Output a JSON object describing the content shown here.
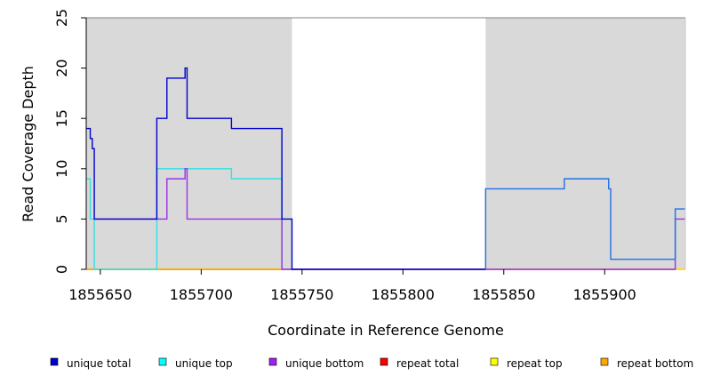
{
  "chart_data": {
    "type": "line",
    "title": "",
    "xlabel": "Coordinate in Reference Genome",
    "ylabel": "Read Coverage Depth",
    "xlim": [
      1855643,
      1855940
    ],
    "ylim": [
      0,
      25
    ],
    "x_ticks": [
      1855650,
      1855700,
      1855750,
      1855800,
      1855850,
      1855900
    ],
    "y_ticks": [
      0,
      5,
      10,
      15,
      20,
      25
    ],
    "shaded_regions": [
      [
        1855643,
        1855745
      ],
      [
        1855841,
        1855940
      ]
    ],
    "legend_position": "bottom",
    "series": [
      {
        "name": "unique total",
        "color": "#0000cc",
        "points": [
          [
            1855643,
            14
          ],
          [
            1855645,
            14
          ],
          [
            1855645,
            13
          ],
          [
            1855646,
            13
          ],
          [
            1855646,
            12
          ],
          [
            1855647,
            12
          ],
          [
            1855647,
            5
          ],
          [
            1855678,
            5
          ],
          [
            1855678,
            15
          ],
          [
            1855683,
            15
          ],
          [
            1855683,
            19
          ],
          [
            1855692,
            19
          ],
          [
            1855692,
            20
          ],
          [
            1855693,
            20
          ],
          [
            1855693,
            15
          ],
          [
            1855715,
            15
          ],
          [
            1855715,
            14
          ],
          [
            1855740,
            14
          ],
          [
            1855740,
            5
          ],
          [
            1855745,
            5
          ],
          [
            1855745,
            0
          ],
          [
            1855841,
            0
          ]
        ]
      },
      {
        "name": "unique total",
        "color": "#1f6fe6",
        "points": [
          [
            1855841,
            0
          ],
          [
            1855841,
            8
          ],
          [
            1855880,
            8
          ],
          [
            1855880,
            9
          ],
          [
            1855902,
            9
          ],
          [
            1855902,
            8
          ],
          [
            1855903,
            8
          ],
          [
            1855903,
            1
          ],
          [
            1855935,
            1
          ],
          [
            1855935,
            6
          ],
          [
            1855940,
            6
          ]
        ]
      },
      {
        "name": "unique top",
        "color": "#33e0e0",
        "points": [
          [
            1855643,
            9
          ],
          [
            1855645,
            9
          ],
          [
            1855645,
            5
          ],
          [
            1855647,
            5
          ],
          [
            1855647,
            0
          ],
          [
            1855678,
            0
          ],
          [
            1855678,
            10
          ],
          [
            1855715,
            10
          ],
          [
            1855715,
            9
          ],
          [
            1855740,
            9
          ],
          [
            1855740,
            0
          ],
          [
            1855745,
            0
          ]
        ]
      },
      {
        "name": "unique bottom",
        "color": "#9932e6",
        "points": [
          [
            1855647,
            5
          ],
          [
            1855683,
            5
          ],
          [
            1855683,
            9
          ],
          [
            1855692,
            9
          ],
          [
            1855692,
            10
          ],
          [
            1855693,
            10
          ],
          [
            1855693,
            5
          ],
          [
            1855740,
            5
          ],
          [
            1855740,
            0
          ],
          [
            1855745,
            0
          ],
          [
            1855935,
            0
          ],
          [
            1855935,
            5
          ],
          [
            1855940,
            5
          ]
        ]
      },
      {
        "name": "repeat total",
        "color": "#ff0000",
        "points": [
          [
            1855643,
            0
          ],
          [
            1855940,
            0
          ]
        ]
      },
      {
        "name": "repeat top",
        "color": "#ffff00",
        "points": [
          [
            1855643,
            0
          ],
          [
            1855940,
            0
          ]
        ]
      },
      {
        "name": "repeat bottom",
        "color": "#ffa500",
        "points": [
          [
            1855643,
            0
          ],
          [
            1855745,
            0
          ]
        ]
      }
    ],
    "legend": [
      {
        "label": "unique total",
        "color": "#0000cc"
      },
      {
        "label": "unique top",
        "color": "#00ffff"
      },
      {
        "label": "unique bottom",
        "color": "#a020f0"
      },
      {
        "label": "repeat total",
        "color": "#ff0000"
      },
      {
        "label": "repeat top",
        "color": "#ffff00"
      },
      {
        "label": "repeat bottom",
        "color": "#ffa500"
      }
    ]
  }
}
